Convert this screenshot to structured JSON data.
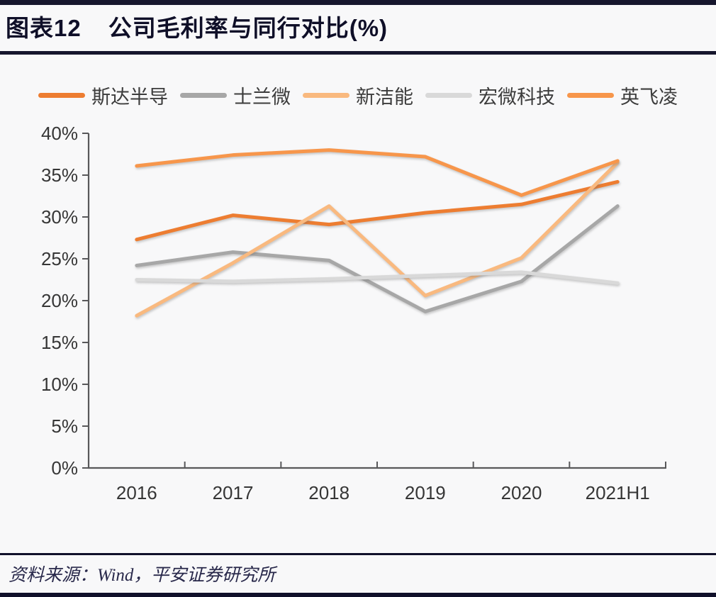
{
  "header": {
    "figure_label": "图表12",
    "figure_title": "公司毛利率与同行对比(%)"
  },
  "chart_data": {
    "type": "line",
    "title": "公司毛利率与同行对比(%)",
    "categories": [
      "2016",
      "2017",
      "2018",
      "2019",
      "2020",
      "2021H1"
    ],
    "series": [
      {
        "name": "斯达半导",
        "color": "#ED7D31",
        "values": [
          27.3,
          30.2,
          29.1,
          30.5,
          31.5,
          34.2
        ]
      },
      {
        "name": "士兰微",
        "color": "#A7A7A7",
        "values": [
          24.2,
          25.8,
          24.8,
          18.7,
          22.3,
          31.3
        ]
      },
      {
        "name": "新洁能",
        "color": "#F9B97F",
        "values": [
          18.2,
          24.5,
          31.3,
          20.6,
          25.1,
          36.5
        ]
      },
      {
        "name": "宏微科技",
        "color": "#D9D9D9",
        "values": [
          22.5,
          22.3,
          22.6,
          23.0,
          23.4,
          22.1
        ]
      },
      {
        "name": "英飞凌",
        "color": "#F7964B",
        "values": [
          36.1,
          37.4,
          38.0,
          37.2,
          32.6,
          36.7
        ]
      }
    ],
    "ylim": [
      0,
      40
    ],
    "ytick_step": 5,
    "ytick_labels": [
      "0%",
      "5%",
      "10%",
      "15%",
      "20%",
      "25%",
      "30%",
      "35%",
      "40%"
    ],
    "legend_position": "top",
    "grid": false
  },
  "footer": {
    "source": "资料来源：Wind，平安证券研究所"
  },
  "colors": {
    "rule": "#16162d",
    "axis": "#58585a",
    "tick_label": "#363636"
  }
}
